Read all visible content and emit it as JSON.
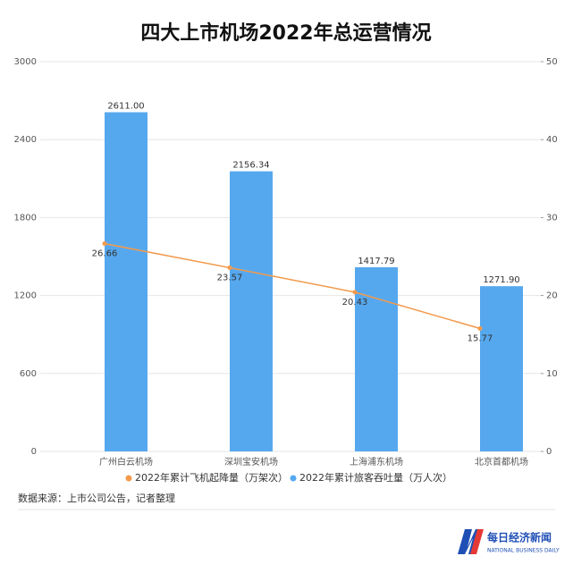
{
  "chart_data": {
    "type": "bar_line",
    "title": "四大上市机场2022年总运营情况",
    "categories": [
      "广州白云机场",
      "深圳宝安机场",
      "上海浦东机场",
      "北京首都机场"
    ],
    "series": [
      {
        "name": "2022年累计飞机起降量（万架次）",
        "type": "line",
        "axis": "y2",
        "color": "#f39a4b",
        "values": [
          26.66,
          23.57,
          20.43,
          15.77
        ]
      },
      {
        "name": "2022年累计旅客吞吐量（万人次）",
        "type": "bar",
        "color": "#56a8ee",
        "values": [
          2611.0,
          2156.34,
          1417.79,
          1271.9
        ],
        "value_labels": [
          "2611.00",
          "2156.34",
          "1417.79",
          "1271.90"
        ]
      }
    ],
    "ylim": [
      0,
      3000
    ],
    "yticks": [
      0,
      600,
      1200,
      1800,
      2400,
      3000
    ],
    "y2lim": [
      0,
      50
    ],
    "y2ticks": [
      0,
      10,
      20,
      30,
      40,
      50
    ],
    "grid": true,
    "source": "数据来源：上市公司公告，记者整理",
    "logo": {
      "name": "每日经济新闻",
      "subtitle": "NATIONAL BUSINESS DAILY"
    }
  }
}
